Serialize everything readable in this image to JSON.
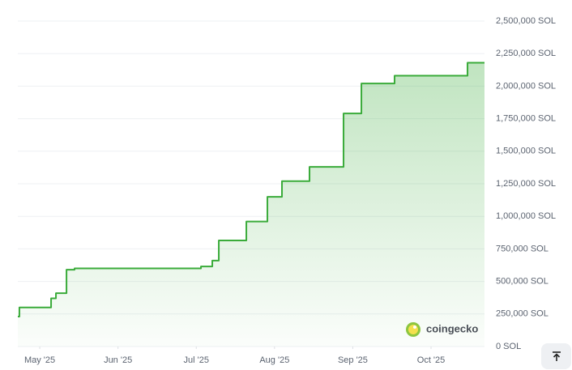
{
  "chart_data": {
    "type": "line",
    "x": [
      4.72,
      4.74,
      5.145,
      5.207,
      5.342,
      5.445,
      7.06,
      7.205,
      7.288,
      7.64,
      7.909,
      8.095,
      8.447,
      8.882,
      9.11,
      9.534,
      10.466,
      10.683
    ],
    "series": [
      {
        "name": "SOL",
        "color": "#3aab3a",
        "values": [
          230000,
          300000,
          370000,
          410000,
          590000,
          600000,
          615000,
          660000,
          815000,
          960000,
          1150000,
          1270000,
          1380000,
          1790000,
          2020000,
          2080000,
          2180000,
          2180000
        ]
      }
    ],
    "xlim": [
      4.72,
      10.683
    ],
    "xticks": [
      {
        "value": 5,
        "label": "May '25"
      },
      {
        "value": 6,
        "label": "Jun '25"
      },
      {
        "value": 7,
        "label": "Jul '25"
      },
      {
        "value": 8,
        "label": "Aug '25"
      },
      {
        "value": 9,
        "label": "Sep '25"
      },
      {
        "value": 10,
        "label": "Oct '25"
      }
    ],
    "ylim": [
      0,
      2500000
    ],
    "yticks": [
      {
        "value": 0,
        "label": "0 SOL"
      },
      {
        "value": 250000,
        "label": "250,000 SOL"
      },
      {
        "value": 500000,
        "label": "500,000 SOL"
      },
      {
        "value": 750000,
        "label": "750,000 SOL"
      },
      {
        "value": 1000000,
        "label": "1,000,000 SOL"
      },
      {
        "value": 1250000,
        "label": "1,250,000 SOL"
      },
      {
        "value": 1500000,
        "label": "1,500,000 SOL"
      },
      {
        "value": 1750000,
        "label": "1,750,000 SOL"
      },
      {
        "value": 2000000,
        "label": "2,000,000 SOL"
      },
      {
        "value": 2250000,
        "label": "2,250,000 SOL"
      },
      {
        "value": 2500000,
        "label": "2,500,000 SOL"
      }
    ],
    "grid": true,
    "step": true,
    "watermark": "coingecko"
  }
}
